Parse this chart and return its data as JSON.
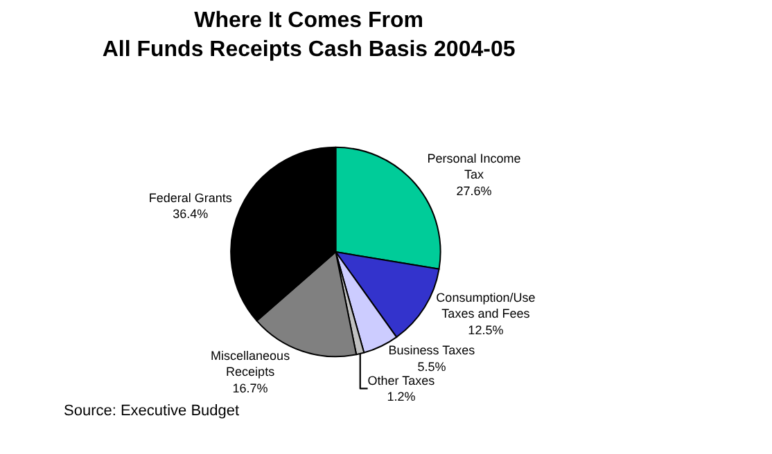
{
  "chart_data": {
    "type": "pie",
    "title": "Where It Comes From\nAll Funds Receipts Cash Basis 2004-05",
    "categories": [
      "Personal Income Tax",
      "Consumption/Use Taxes and Fees",
      "Business Taxes",
      "Other Taxes",
      "Miscellaneous Receipts",
      "Federal Grants"
    ],
    "values": [
      27.6,
      12.5,
      5.5,
      1.2,
      16.7,
      36.4
    ],
    "colors": [
      "#00cc99",
      "#3333cc",
      "#ccccff",
      "#c0c0c0",
      "#808080",
      "#000000"
    ],
    "value_labels": [
      "27.6%",
      "12.5%",
      "5.5%",
      "1.2%",
      "16.7%",
      "36.4%"
    ],
    "legend": false,
    "annotations": [
      "Source: Executive Budget"
    ]
  }
}
